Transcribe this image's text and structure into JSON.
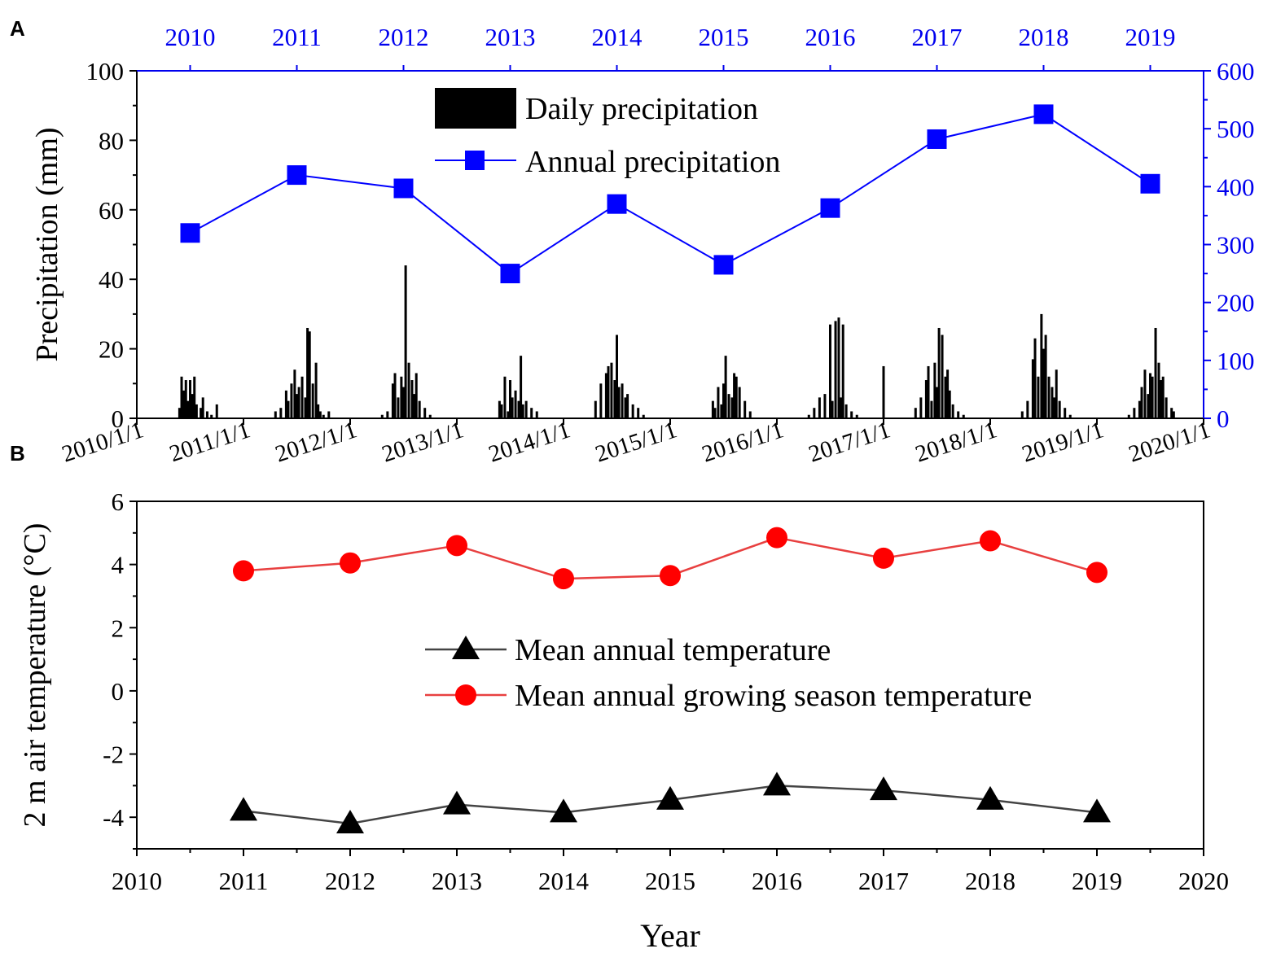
{
  "colors": {
    "precip_axis": "#0000ee",
    "annual_marker": "#0000ff",
    "daily_bar": "#000000",
    "mean_annual": "#000000",
    "mean_annual_line": "#444444",
    "growing_marker": "#ff0000",
    "growing_line": "#e84040"
  },
  "panel_labels": {
    "a": "A",
    "b": "B"
  },
  "chart_data": [
    {
      "type": "bar",
      "panel": "A",
      "ylabel": "Precipitation (mm)",
      "ylim": [
        0,
        100
      ],
      "y_ticks": [
        "0",
        "20",
        "40",
        "60",
        "80",
        "100"
      ],
      "y2lim": [
        0,
        600
      ],
      "y2_ticks": [
        "0",
        "100",
        "200",
        "300",
        "400",
        "500",
        "600"
      ],
      "xlim": [
        2010.0,
        2020.0
      ],
      "x_tick_labels": [
        "2010/1/1",
        "2011/1/1",
        "2012/1/1",
        "2013/1/1",
        "2014/1/1",
        "2015/1/1",
        "2016/1/1",
        "2017/1/1",
        "2018/1/1",
        "2019/1/1",
        "2020/1/1"
      ],
      "top_axis_labels": [
        "2010",
        "2011",
        "2012",
        "2013",
        "2014",
        "2015",
        "2016",
        "2017",
        "2018",
        "2019"
      ],
      "legend_placement": "top-center",
      "series": [
        {
          "name": "Daily precipitation",
          "type": "bar",
          "axis": "left",
          "x": [
            2010.4,
            2010.42,
            2010.44,
            2010.46,
            2010.48,
            2010.5,
            2010.52,
            2010.54,
            2010.56,
            2010.6,
            2010.62,
            2010.66,
            2010.7,
            2010.75,
            2011.3,
            2011.35,
            2011.4,
            2011.42,
            2011.45,
            2011.48,
            2011.5,
            2011.52,
            2011.55,
            2011.58,
            2011.6,
            2011.62,
            2011.65,
            2011.68,
            2011.7,
            2011.72,
            2011.75,
            2011.8,
            2012.3,
            2012.35,
            2012.4,
            2012.42,
            2012.45,
            2012.48,
            2012.5,
            2012.52,
            2012.55,
            2012.58,
            2012.6,
            2012.62,
            2012.65,
            2012.7,
            2012.75,
            2013.4,
            2013.42,
            2013.45,
            2013.48,
            2013.5,
            2013.52,
            2013.55,
            2013.58,
            2013.6,
            2013.62,
            2013.65,
            2013.7,
            2013.75,
            2014.3,
            2014.35,
            2014.4,
            2014.42,
            2014.45,
            2014.48,
            2014.5,
            2014.52,
            2014.55,
            2014.58,
            2014.6,
            2014.65,
            2014.7,
            2014.75,
            2015.4,
            2015.42,
            2015.45,
            2015.48,
            2015.5,
            2015.52,
            2015.55,
            2015.58,
            2015.6,
            2015.62,
            2015.65,
            2015.7,
            2015.75,
            2016.3,
            2016.35,
            2016.4,
            2016.45,
            2016.5,
            2016.52,
            2016.55,
            2016.58,
            2016.6,
            2016.62,
            2016.65,
            2016.7,
            2016.75,
            2017.0,
            2017.3,
            2017.35,
            2017.4,
            2017.42,
            2017.45,
            2017.48,
            2017.5,
            2017.52,
            2017.55,
            2017.58,
            2017.6,
            2017.62,
            2017.65,
            2017.7,
            2017.75,
            2018.3,
            2018.35,
            2018.4,
            2018.42,
            2018.45,
            2018.48,
            2018.5,
            2018.52,
            2018.55,
            2018.58,
            2018.6,
            2018.62,
            2018.65,
            2018.7,
            2018.75,
            2019.3,
            2019.35,
            2019.4,
            2019.42,
            2019.45,
            2019.48,
            2019.5,
            2019.52,
            2019.55,
            2019.58,
            2019.6,
            2019.62,
            2019.65,
            2019.7,
            2019.72
          ],
          "values": [
            3,
            12,
            8,
            11,
            5,
            11,
            7,
            12,
            4,
            3,
            6,
            2,
            1,
            4,
            2,
            3,
            8,
            5,
            10,
            14,
            7,
            9,
            12,
            6,
            26,
            25,
            10,
            16,
            4,
            2,
            1,
            2,
            1,
            2,
            10,
            13,
            6,
            12,
            9,
            44,
            16,
            11,
            7,
            13,
            5,
            3,
            1,
            5,
            4,
            12,
            2,
            11,
            6,
            8,
            5,
            18,
            4,
            5,
            3,
            2,
            5,
            10,
            13,
            15,
            16,
            11,
            24,
            9,
            10,
            6,
            7,
            4,
            3,
            1,
            5,
            3,
            9,
            4,
            10,
            18,
            7,
            6,
            13,
            12,
            9,
            5,
            2,
            1,
            3,
            6,
            7,
            27,
            5,
            28,
            29,
            6,
            27,
            4,
            2,
            1,
            15,
            3,
            6,
            11,
            15,
            5,
            16,
            9,
            26,
            24,
            12,
            14,
            8,
            4,
            2,
            1,
            2,
            5,
            17,
            23,
            12,
            30,
            20,
            24,
            12,
            9,
            6,
            14,
            5,
            3,
            1,
            1,
            3,
            5,
            9,
            14,
            7,
            13,
            12,
            26,
            16,
            11,
            12,
            6,
            3,
            2
          ]
        },
        {
          "name": "Annual precipitation",
          "type": "line",
          "axis": "right",
          "x": [
            2010.5,
            2011.5,
            2012.5,
            2013.5,
            2014.5,
            2015.5,
            2016.5,
            2017.5,
            2018.5,
            2019.5
          ],
          "values": [
            320,
            420,
            397,
            250,
            370,
            265,
            363,
            482,
            525,
            405
          ]
        }
      ]
    },
    {
      "type": "line",
      "panel": "B",
      "xlabel": "Year",
      "ylabel": "2 m air temperature (°C)",
      "xlim": [
        2010,
        2020
      ],
      "x_ticks": [
        "2010",
        "2011",
        "2012",
        "2013",
        "2014",
        "2015",
        "2016",
        "2017",
        "2018",
        "2019",
        "2020"
      ],
      "ylim": [
        -5,
        6
      ],
      "y_ticks": [
        "-4",
        "-2",
        "0",
        "2",
        "4",
        "6"
      ],
      "legend_placement": "center",
      "x": [
        2011,
        2012,
        2013,
        2014,
        2015,
        2016,
        2017,
        2018,
        2019
      ],
      "series": [
        {
          "name": "Mean annual temperature",
          "marker": "triangle",
          "values": [
            -3.8,
            -4.2,
            -3.6,
            -3.85,
            -3.45,
            -3.0,
            -3.15,
            -3.45,
            -3.85
          ]
        },
        {
          "name": "Mean annual growing season temperature",
          "marker": "circle",
          "values": [
            3.8,
            4.05,
            4.6,
            3.55,
            3.65,
            4.85,
            4.2,
            4.75,
            3.75
          ]
        }
      ]
    }
  ]
}
